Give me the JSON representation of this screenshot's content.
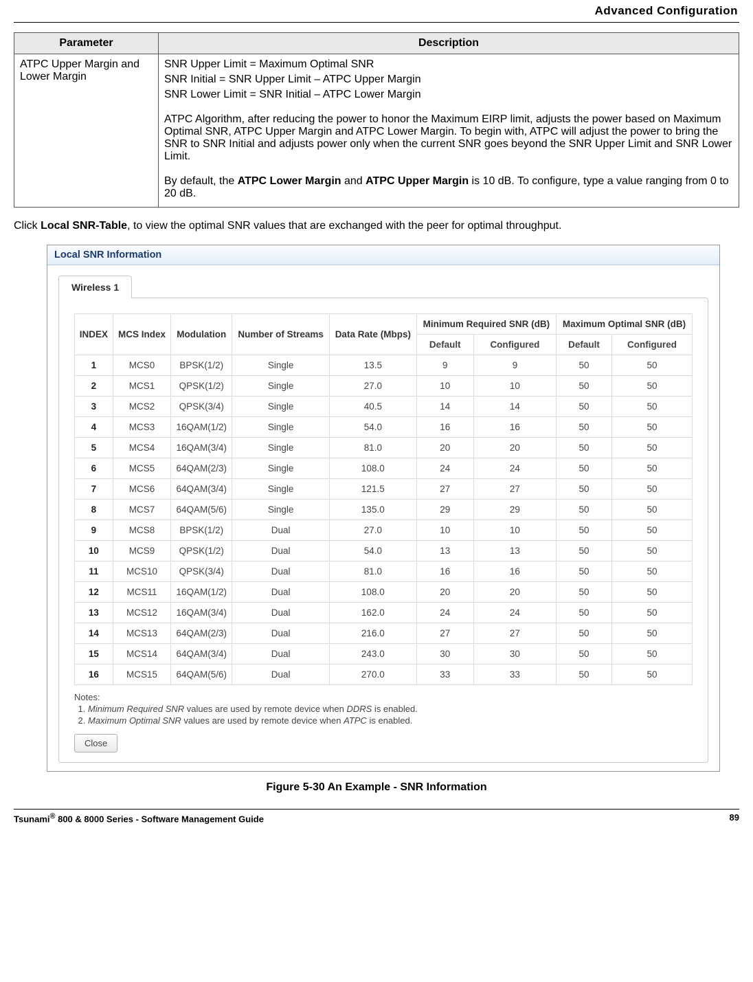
{
  "header": {
    "title": "Advanced Configuration"
  },
  "param_table": {
    "headers": {
      "parameter": "Parameter",
      "description": "Description"
    },
    "row": {
      "param": "ATPC Upper Margin and Lower Margin",
      "lines": [
        "SNR Upper Limit = Maximum Optimal SNR",
        "SNR Initial = SNR Upper Limit – ATPC Upper Margin",
        "SNR Lower Limit = SNR Initial – ATPC Lower Margin"
      ],
      "para1": "ATPC Algorithm, after reducing the power to honor the Maximum EIRP limit, adjusts the power based on Maximum Optimal SNR, ATPC Upper Margin and ATPC Lower Margin. To begin with, ATPC will adjust the power to bring the SNR to SNR Initial and adjusts power only when the current SNR goes beyond the SNR Upper Limit and SNR Lower Limit.",
      "para2_pre": "By default, the ",
      "para2_b1": "ATPC Lower Margin",
      "para2_mid": " and ",
      "para2_b2": "ATPC Upper Margin",
      "para2_post": " is 10 dB. To configure, type a value ranging from 0 to 20 dB."
    }
  },
  "intro": {
    "pre": "Click ",
    "bold": "Local SNR-Table",
    "post": ", to view the optimal SNR values that are exchanged with the peer for optimal throughput."
  },
  "dialog": {
    "title": "Local SNR Information",
    "tab": "Wireless 1",
    "table": {
      "head": {
        "index": "INDEX",
        "mcs": "MCS Index",
        "mod": "Modulation",
        "streams": "Number of Streams",
        "rate": "Data Rate (Mbps)",
        "minsnr": "Minimum Required SNR (dB)",
        "maxsnr": "Maximum Optimal SNR (dB)",
        "default": "Default",
        "configured": "Configured"
      },
      "rows": [
        {
          "i": "1",
          "mcs": "MCS0",
          "mod": "BPSK(1/2)",
          "s": "Single",
          "r": "13.5",
          "mnd": "9",
          "mnc": "9",
          "mxd": "50",
          "mxc": "50"
        },
        {
          "i": "2",
          "mcs": "MCS1",
          "mod": "QPSK(1/2)",
          "s": "Single",
          "r": "27.0",
          "mnd": "10",
          "mnc": "10",
          "mxd": "50",
          "mxc": "50"
        },
        {
          "i": "3",
          "mcs": "MCS2",
          "mod": "QPSK(3/4)",
          "s": "Single",
          "r": "40.5",
          "mnd": "14",
          "mnc": "14",
          "mxd": "50",
          "mxc": "50"
        },
        {
          "i": "4",
          "mcs": "MCS3",
          "mod": "16QAM(1/2)",
          "s": "Single",
          "r": "54.0",
          "mnd": "16",
          "mnc": "16",
          "mxd": "50",
          "mxc": "50"
        },
        {
          "i": "5",
          "mcs": "MCS4",
          "mod": "16QAM(3/4)",
          "s": "Single",
          "r": "81.0",
          "mnd": "20",
          "mnc": "20",
          "mxd": "50",
          "mxc": "50"
        },
        {
          "i": "6",
          "mcs": "MCS5",
          "mod": "64QAM(2/3)",
          "s": "Single",
          "r": "108.0",
          "mnd": "24",
          "mnc": "24",
          "mxd": "50",
          "mxc": "50"
        },
        {
          "i": "7",
          "mcs": "MCS6",
          "mod": "64QAM(3/4)",
          "s": "Single",
          "r": "121.5",
          "mnd": "27",
          "mnc": "27",
          "mxd": "50",
          "mxc": "50"
        },
        {
          "i": "8",
          "mcs": "MCS7",
          "mod": "64QAM(5/6)",
          "s": "Single",
          "r": "135.0",
          "mnd": "29",
          "mnc": "29",
          "mxd": "50",
          "mxc": "50"
        },
        {
          "i": "9",
          "mcs": "MCS8",
          "mod": "BPSK(1/2)",
          "s": "Dual",
          "r": "27.0",
          "mnd": "10",
          "mnc": "10",
          "mxd": "50",
          "mxc": "50"
        },
        {
          "i": "10",
          "mcs": "MCS9",
          "mod": "QPSK(1/2)",
          "s": "Dual",
          "r": "54.0",
          "mnd": "13",
          "mnc": "13",
          "mxd": "50",
          "mxc": "50"
        },
        {
          "i": "11",
          "mcs": "MCS10",
          "mod": "QPSK(3/4)",
          "s": "Dual",
          "r": "81.0",
          "mnd": "16",
          "mnc": "16",
          "mxd": "50",
          "mxc": "50"
        },
        {
          "i": "12",
          "mcs": "MCS11",
          "mod": "16QAM(1/2)",
          "s": "Dual",
          "r": "108.0",
          "mnd": "20",
          "mnc": "20",
          "mxd": "50",
          "mxc": "50"
        },
        {
          "i": "13",
          "mcs": "MCS12",
          "mod": "16QAM(3/4)",
          "s": "Dual",
          "r": "162.0",
          "mnd": "24",
          "mnc": "24",
          "mxd": "50",
          "mxc": "50"
        },
        {
          "i": "14",
          "mcs": "MCS13",
          "mod": "64QAM(2/3)",
          "s": "Dual",
          "r": "216.0",
          "mnd": "27",
          "mnc": "27",
          "mxd": "50",
          "mxc": "50"
        },
        {
          "i": "15",
          "mcs": "MCS14",
          "mod": "64QAM(3/4)",
          "s": "Dual",
          "r": "243.0",
          "mnd": "30",
          "mnc": "30",
          "mxd": "50",
          "mxc": "50"
        },
        {
          "i": "16",
          "mcs": "MCS15",
          "mod": "64QAM(5/6)",
          "s": "Dual",
          "r": "270.0",
          "mnd": "33",
          "mnc": "33",
          "mxd": "50",
          "mxc": "50"
        }
      ]
    },
    "notes": {
      "title": "Notes:",
      "n1_pre": "",
      "n1_i1": "Minimum Required SNR",
      "n1_mid": " values are used by remote device when ",
      "n1_i2": "DDRS",
      "n1_post": " is enabled.",
      "n2_pre": "",
      "n2_i1": "Maximum Optimal SNR",
      "n2_mid": " values are used by remote device when ",
      "n2_i2": "ATPC",
      "n2_post": " is enabled."
    },
    "close": "Close"
  },
  "figure_caption": "Figure 5-30 An Example - SNR Information",
  "footer": {
    "left_pre": "Tsunami",
    "left_sup": "®",
    "left_post": " 800 & 8000 Series - Software Management Guide",
    "page": "89"
  }
}
